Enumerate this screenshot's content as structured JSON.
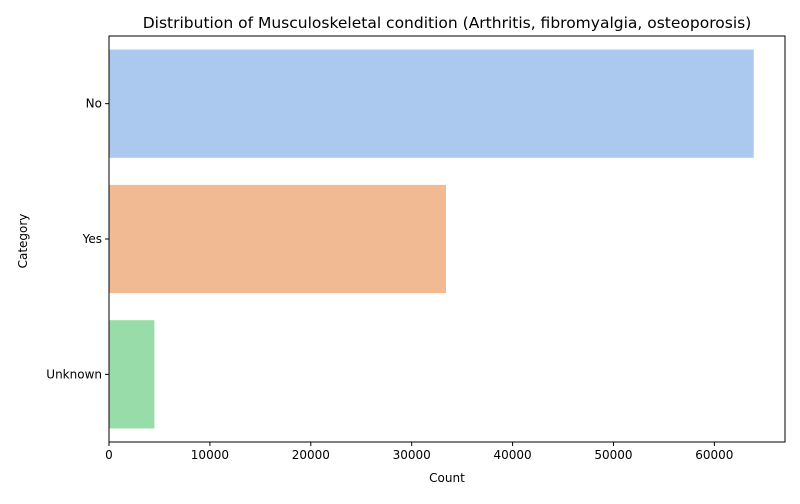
{
  "chart_data": {
    "type": "bar",
    "orientation": "horizontal",
    "title": "Distribution of Musculoskeletal condition (Arthritis, fibromyalgia, osteoporosis)",
    "xlabel": "Count",
    "ylabel": "Category",
    "categories": [
      "No",
      "Yes",
      "Unknown"
    ],
    "values": [
      63900,
      33400,
      4500
    ],
    "colors": [
      "#abc9ee",
      "#f1ba93",
      "#98dcaa"
    ],
    "xlim": [
      0,
      67000
    ],
    "xticks": [
      0,
      10000,
      20000,
      30000,
      40000,
      50000,
      60000
    ],
    "grid": false,
    "legend": "none"
  }
}
